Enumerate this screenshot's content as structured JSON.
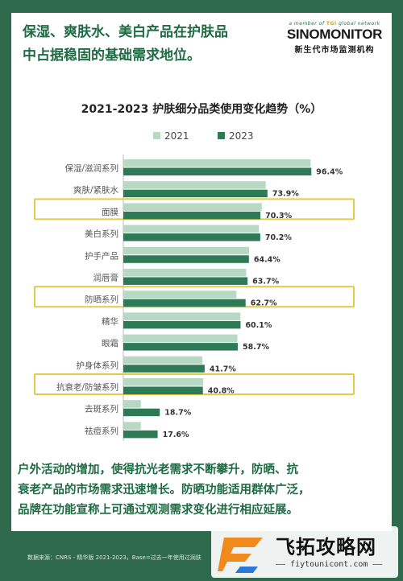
{
  "headline": {
    "line1": "保湿、爽肤水、美白产品在护肤品",
    "line2": "中占据稳固的基础需求地位。"
  },
  "brand": {
    "tag_prefix": "a member of",
    "tag_mark": "TGI",
    "tag_suffix": "global network",
    "name": "SINOMONITOR",
    "name_cn": "新生代市场监测机构"
  },
  "chart_data": {
    "type": "bar",
    "orientation": "horizontal",
    "title": "2021-2023 护肤细分品类使用变化趋势（%）",
    "legend_position": "top",
    "categories": [
      "保湿/滋润系列",
      "爽肤/紧肤水",
      "面膜",
      "美白系列",
      "护手产品",
      "润唇膏",
      "防晒系列",
      "精华",
      "眼霜",
      "护身体系列",
      "抗衰老/防皱系列",
      "去斑系列",
      "祛痘系列"
    ],
    "series": [
      {
        "name": "2021",
        "color": "#b7d9c4",
        "values": [
          96.0,
          73.0,
          71.0,
          69.5,
          64.5,
          63.0,
          58.0,
          60.0,
          58.5,
          40.5,
          41.0,
          9.0,
          9.0
        ]
      },
      {
        "name": "2023",
        "color": "#2e7a57",
        "values": [
          96.4,
          73.9,
          70.3,
          70.2,
          64.4,
          63.7,
          62.7,
          60.1,
          58.7,
          41.7,
          40.8,
          18.7,
          17.6
        ]
      }
    ],
    "value_labels": [
      "96.4%",
      "73.9%",
      "70.3%",
      "70.2%",
      "64.4%",
      "63.7%",
      "62.7%",
      "60.1%",
      "58.7%",
      "41.7%",
      "40.8%",
      "18.7%",
      "17.6%"
    ],
    "highlighted_categories": [
      "面膜",
      "防晒系列",
      "抗衰老/防皱系列"
    ],
    "highlight_color": "#e3c94a",
    "xlim": [
      0,
      100
    ]
  },
  "footnote": {
    "line1": "户外活动的增加，使得抗光老需求不断攀升，防晒、抗",
    "line2": "衰老产品的市场需求迅速增长。防晒功能适用群体广泛，",
    "line3": "品牌在功能宣称上可通过观测需求变化进行相应延展。"
  },
  "source": "数据来源：CNRS - 精华版 2021-2023，Base=过去一年使用过润肤",
  "watermark": {
    "name": "飞拓攻略网",
    "url": "—— fiytounicont.com ——"
  }
}
